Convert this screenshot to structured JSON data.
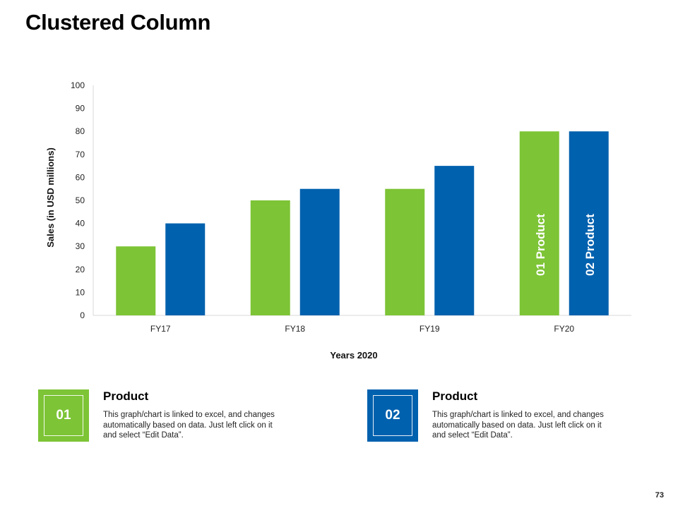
{
  "page": {
    "title": "Clustered Column",
    "page_number": "73"
  },
  "colors": {
    "product_01": "#7DC436",
    "product_02": "#0061AE",
    "axis": "#D9D9D9",
    "text": "#222222"
  },
  "chart_data": {
    "type": "bar",
    "title": "",
    "xlabel": "Years 2020",
    "ylabel": "Sales (in USD millions)",
    "categories": [
      "FY17",
      "FY18",
      "FY19",
      "FY20"
    ],
    "ylim": [
      0,
      100
    ],
    "yticks": [
      0,
      10,
      20,
      30,
      40,
      50,
      60,
      70,
      80,
      90,
      100
    ],
    "grid": false,
    "series": [
      {
        "name": "Product 01",
        "label": "01 Product",
        "values": [
          30,
          50,
          55,
          80
        ]
      },
      {
        "name": "Product 02",
        "label": "02 Product",
        "values": [
          40,
          55,
          65,
          80
        ]
      }
    ],
    "bar_label_category": "FY20"
  },
  "legend": [
    {
      "number": "01",
      "title": "Product",
      "description": "This graph/chart is linked to excel, and changes automatically based on data. Just left click on it and select “Edit Data”."
    },
    {
      "number": "02",
      "title": "Product",
      "description": "This graph/chart is linked to excel, and changes automatically based on data. Just left click on it and select “Edit Data”."
    }
  ]
}
